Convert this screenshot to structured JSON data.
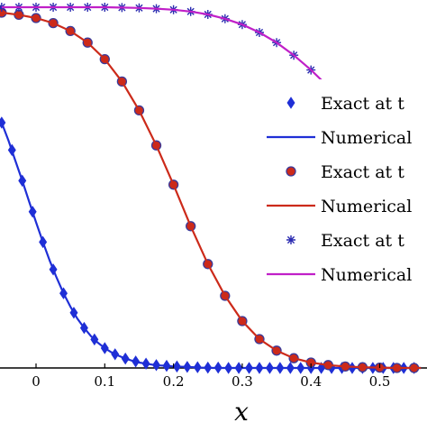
{
  "chart_data": {
    "type": "line",
    "xlabel": "x",
    "ylabel": "",
    "xlim": [
      -0.05,
      0.56
    ],
    "ylim": [
      0,
      1.0
    ],
    "xticks": [
      0,
      0.1,
      0.2,
      0.3,
      0.4,
      0.5
    ],
    "xtick_labels": [
      "0",
      "0.1",
      "0.2",
      "0.3",
      "0.4",
      "0.5"
    ],
    "grid": false,
    "legend_position": "right",
    "series": [
      {
        "name": "Exact at t",
        "kind": "markers",
        "marker": "diamond",
        "color": "#1f2fd6",
        "x": [
          -0.05,
          -0.035,
          -0.02,
          -0.005,
          0.01,
          0.025,
          0.04,
          0.055,
          0.07,
          0.085,
          0.1,
          0.115,
          0.13,
          0.145,
          0.16,
          0.175,
          0.19,
          0.205,
          0.22,
          0.235,
          0.25,
          0.265,
          0.28,
          0.295,
          0.31,
          0.325,
          0.34,
          0.355,
          0.37,
          0.385,
          0.4,
          0.415,
          0.43,
          0.445,
          0.46,
          0.475,
          0.49,
          0.505,
          0.52,
          0.535,
          0.55
        ],
        "y": [
          0.68,
          0.604,
          0.519,
          0.433,
          0.349,
          0.273,
          0.207,
          0.153,
          0.111,
          0.079,
          0.055,
          0.038,
          0.026,
          0.018,
          0.012,
          0.008,
          0.006,
          0.004,
          0.003,
          0.002,
          0.001,
          0.001,
          0.0,
          0.0,
          0.0,
          0.0,
          0.0,
          0.0,
          0.0,
          0.0,
          0.0,
          0.0,
          0.0,
          0.0,
          0.0,
          0.0,
          0.0,
          0.0,
          0.0,
          0.0,
          0.0
        ]
      },
      {
        "name": "Numerical",
        "kind": "line",
        "color": "#1f2fd6",
        "x": [
          -0.05,
          -0.04,
          -0.03,
          -0.02,
          -0.01,
          0.0,
          0.01,
          0.02,
          0.03,
          0.04,
          0.05,
          0.06,
          0.07,
          0.08,
          0.09,
          0.1,
          0.11,
          0.12,
          0.13,
          0.14,
          0.15,
          0.16,
          0.17,
          0.18,
          0.19,
          0.2,
          0.22,
          0.24,
          0.26,
          0.3,
          0.35,
          0.4,
          0.45,
          0.5,
          0.56
        ],
        "y": [
          0.68,
          0.63,
          0.574,
          0.519,
          0.461,
          0.404,
          0.349,
          0.297,
          0.25,
          0.207,
          0.17,
          0.137,
          0.111,
          0.088,
          0.07,
          0.055,
          0.043,
          0.034,
          0.026,
          0.02,
          0.015,
          0.012,
          0.009,
          0.007,
          0.006,
          0.004,
          0.003,
          0.001,
          0.0,
          0.0,
          0.0,
          0.0,
          0.0,
          0.0,
          0.0
        ]
      },
      {
        "name": "Exact at t",
        "kind": "markers",
        "marker": "circle",
        "color": "#cc2a1a",
        "x": [
          -0.05,
          -0.025,
          0.0,
          0.025,
          0.05,
          0.075,
          0.1,
          0.125,
          0.15,
          0.175,
          0.2,
          0.225,
          0.25,
          0.275,
          0.3,
          0.325,
          0.35,
          0.375,
          0.4,
          0.425,
          0.45,
          0.475,
          0.5,
          0.525,
          0.55
        ],
        "y": [
          0.985,
          0.979,
          0.97,
          0.956,
          0.934,
          0.902,
          0.856,
          0.794,
          0.714,
          0.617,
          0.508,
          0.393,
          0.288,
          0.2,
          0.13,
          0.08,
          0.048,
          0.027,
          0.015,
          0.008,
          0.004,
          0.002,
          0.001,
          0.0,
          0.0
        ]
      },
      {
        "name": "Numerical",
        "kind": "line",
        "color": "#cc2a1a",
        "x": [
          -0.05,
          -0.025,
          0.0,
          0.025,
          0.05,
          0.075,
          0.1,
          0.125,
          0.15,
          0.175,
          0.2,
          0.225,
          0.25,
          0.275,
          0.3,
          0.325,
          0.35,
          0.375,
          0.4,
          0.425,
          0.45,
          0.475,
          0.5,
          0.525,
          0.56
        ],
        "y": [
          0.985,
          0.979,
          0.97,
          0.956,
          0.934,
          0.902,
          0.856,
          0.794,
          0.714,
          0.617,
          0.508,
          0.393,
          0.288,
          0.2,
          0.13,
          0.08,
          0.048,
          0.027,
          0.015,
          0.008,
          0.004,
          0.002,
          0.001,
          0.0,
          0.0
        ]
      },
      {
        "name": "Exact at t",
        "kind": "markers",
        "marker": "star",
        "color": "#2a2ab0",
        "x": [
          -0.05,
          -0.025,
          0.0,
          0.025,
          0.05,
          0.075,
          0.1,
          0.125,
          0.15,
          0.175,
          0.2,
          0.225,
          0.25,
          0.275,
          0.3,
          0.325,
          0.35,
          0.375,
          0.4,
          0.425,
          0.45,
          0.475
        ],
        "y": [
          1.0,
          1.0,
          1.0,
          1.0,
          1.0,
          1.0,
          1.0,
          0.999,
          0.998,
          0.996,
          0.993,
          0.988,
          0.98,
          0.968,
          0.952,
          0.93,
          0.902,
          0.867,
          0.826,
          0.78,
          0.73,
          0.68
        ]
      },
      {
        "name": "Numerical",
        "kind": "line",
        "color": "#c020c8",
        "x": [
          -0.05,
          0.0,
          0.05,
          0.1,
          0.125,
          0.15,
          0.175,
          0.2,
          0.225,
          0.25,
          0.275,
          0.3,
          0.325,
          0.35,
          0.375,
          0.4,
          0.425,
          0.45,
          0.475
        ],
        "y": [
          1.0,
          1.0,
          1.0,
          1.0,
          0.999,
          0.998,
          0.996,
          0.993,
          0.988,
          0.98,
          0.968,
          0.952,
          0.93,
          0.902,
          0.867,
          0.826,
          0.78,
          0.73,
          0.68
        ]
      }
    ],
    "legend": [
      {
        "label": "Exact at t",
        "marker": "diamond",
        "color": "#1f2fd6"
      },
      {
        "label": "Numerical",
        "line": true,
        "color": "#1f2fd6"
      },
      {
        "label": "Exact at t",
        "marker": "circle",
        "color": "#cc2a1a"
      },
      {
        "label": "Numerical",
        "line": true,
        "color": "#cc2a1a"
      },
      {
        "label": "Exact at t",
        "marker": "star",
        "color": "#2a2ab0"
      },
      {
        "label": "Numerical",
        "line": true,
        "color": "#c020c8"
      }
    ]
  }
}
